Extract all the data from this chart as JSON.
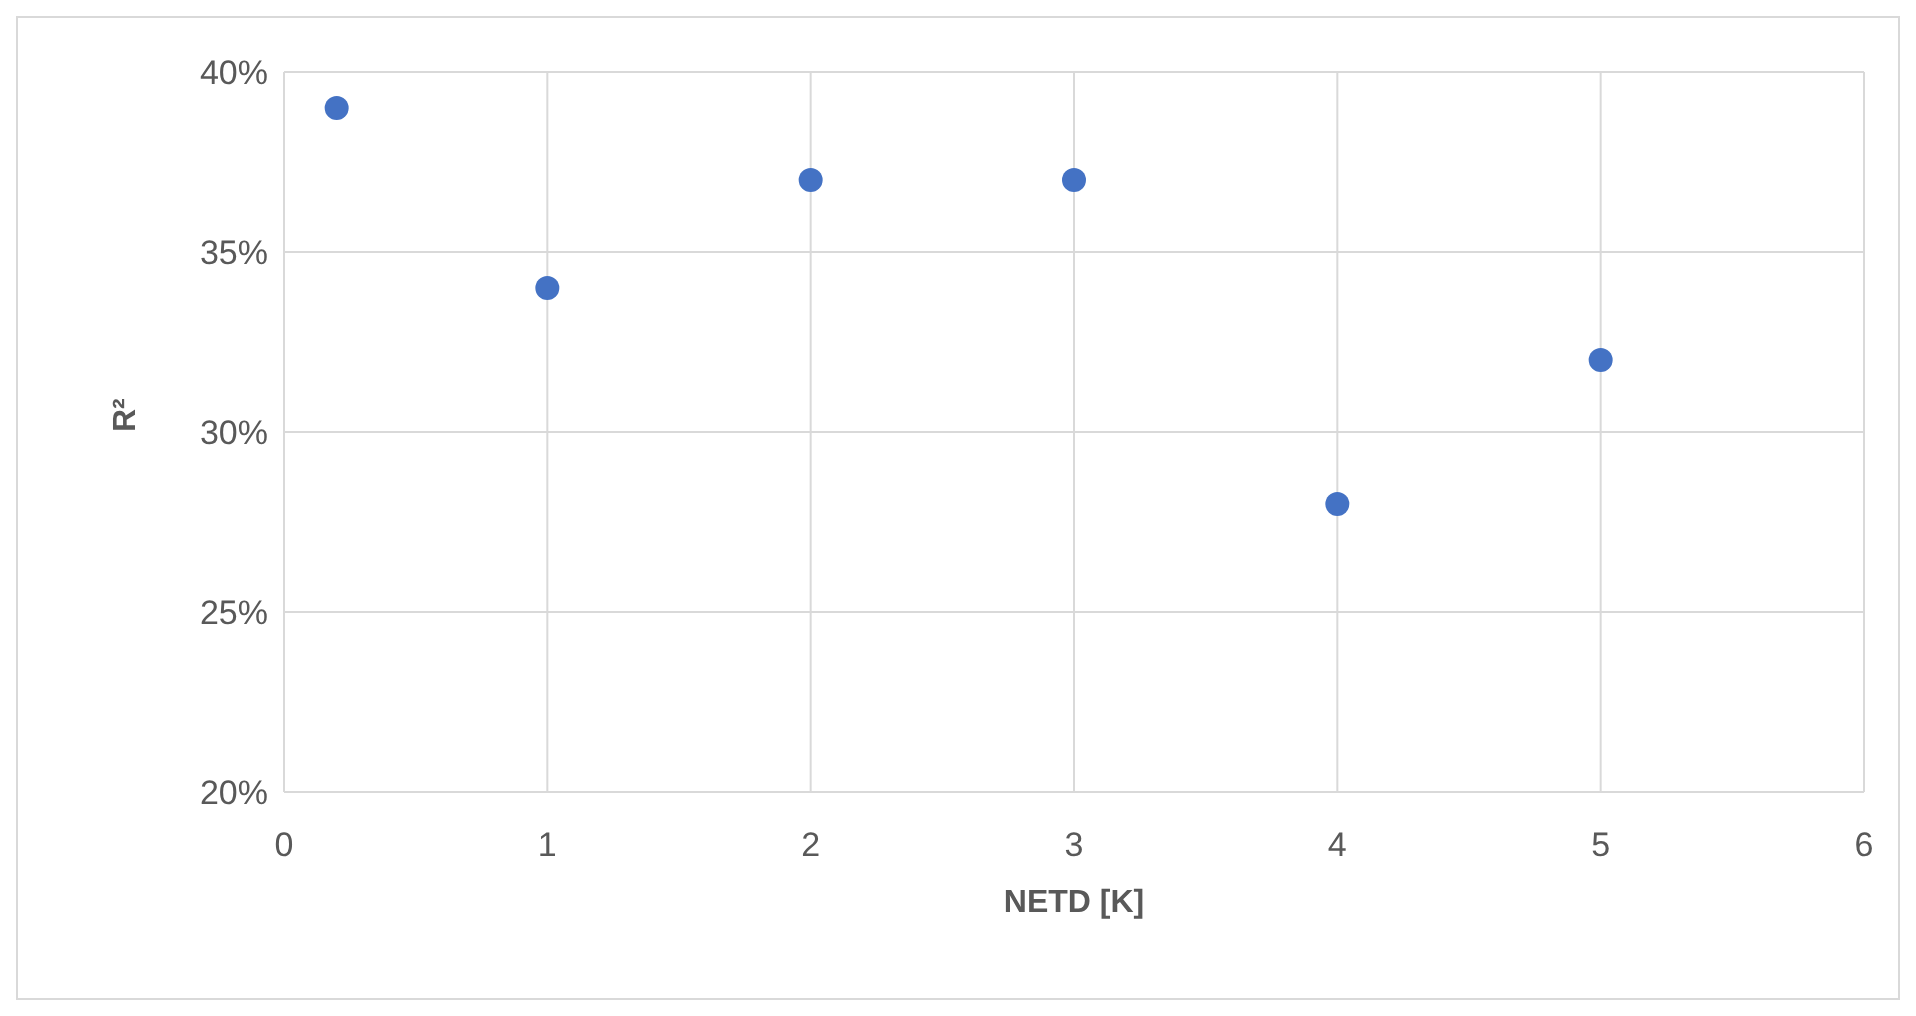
{
  "chart_data": {
    "type": "scatter",
    "xlabel": "NETD [K]",
    "ylabel": "R²",
    "x": [
      0.2,
      1,
      2,
      3,
      4,
      5
    ],
    "series": [
      {
        "color": "#4472c4",
        "values": [
          39,
          34,
          37,
          37,
          28,
          32
        ]
      }
    ],
    "xlim": [
      0,
      6
    ],
    "xticks": [
      0,
      1,
      2,
      3,
      4,
      5,
      6
    ],
    "ylim": [
      20,
      40
    ],
    "yticks": [
      {
        "value": 20,
        "label": "20%"
      },
      {
        "value": 25,
        "label": "25%"
      },
      {
        "value": 30,
        "label": "30%"
      },
      {
        "value": 35,
        "label": "35%"
      },
      {
        "value": 40,
        "label": "40%"
      }
    ],
    "grid": true,
    "marker": "circle",
    "legend": false
  }
}
